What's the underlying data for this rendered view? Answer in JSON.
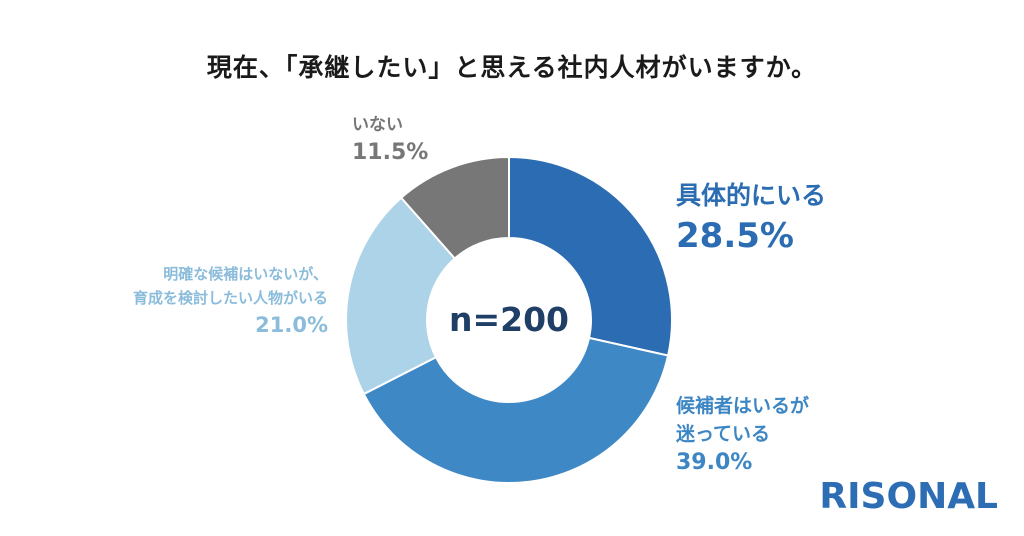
{
  "title": "現在、「承継したい」と思える社内人材がいますか。",
  "chart_data": {
    "type": "pie",
    "style": "donut",
    "center_label": "n=200",
    "slices": [
      {
        "name": "具体的にいる",
        "value": 28.5,
        "label": "28.5%",
        "color": "#2b6cb2"
      },
      {
        "name": "候補者はいるが迷っている",
        "lines": [
          "候補者はいるが",
          "迷っている"
        ],
        "value": 39.0,
        "label": "39.0%",
        "color": "#3f88c6"
      },
      {
        "name": "明確な候補はいないが、育成を検討したい人物がいる",
        "lines": [
          "明確な候補はいないが、",
          "育成を検討したい人物がいる"
        ],
        "value": 21.0,
        "label": "21.0%",
        "color": "#add3e8"
      },
      {
        "name": "いない",
        "value": 11.5,
        "label": "11.5%",
        "color": "#777777"
      }
    ],
    "start": "top",
    "direction": "clockwise"
  },
  "logo": "RISONAL"
}
